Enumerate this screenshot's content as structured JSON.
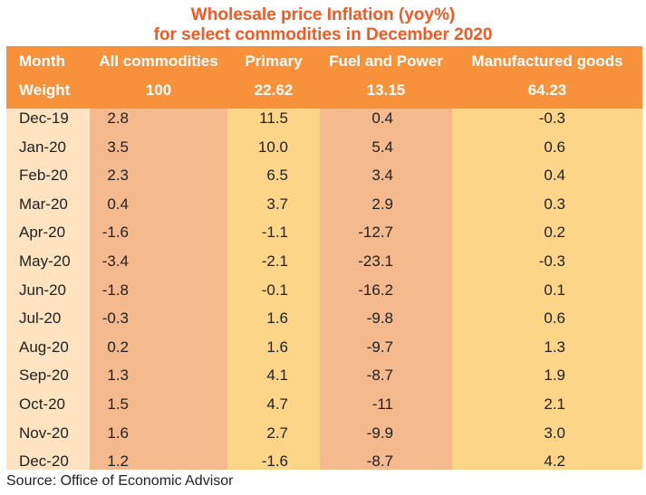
{
  "title_line1": "Wholesale price Inflation (yoy%)",
  "title_line2": "for select commodities in December 2020",
  "source": "Source: Office of Economic Advisor",
  "colors": {
    "title": "#f15a24",
    "header_bg": "#f7913a",
    "col_month": "#fde3c0",
    "col_all": "#f4b98d",
    "col_primary": "#fdd589",
    "col_fuel": "#f4b98d",
    "col_manufactured": "#fdd589",
    "header_text": "#ffffff"
  },
  "chart_data": {
    "type": "table",
    "title": "Wholesale price Inflation (yoy%) for select commodities in December 2020",
    "columns": [
      "Month",
      "All commodities",
      "Primary",
      "Fuel and Power",
      "Manufactured goods"
    ],
    "weights": [
      "Weight",
      "100",
      "22.62",
      "13.15",
      "64.23"
    ],
    "rows": [
      [
        "Dec-19",
        "2.8",
        "11.5",
        "0.4",
        "-0.3"
      ],
      [
        "Jan-20",
        "3.5",
        "10.0",
        "5.4",
        "0.6"
      ],
      [
        "Feb-20",
        "2.3",
        "6.5",
        "3.4",
        "0.4"
      ],
      [
        "Mar-20",
        "0.4",
        "3.7",
        "2.9",
        "0.3"
      ],
      [
        "Apr-20",
        "-1.6",
        "-1.1",
        "-12.7",
        "0.2"
      ],
      [
        "May-20",
        "-3.4",
        "-2.1",
        "-23.1",
        "-0.3"
      ],
      [
        "Jun-20",
        "-1.8",
        "-0.1",
        "-16.2",
        "0.1"
      ],
      [
        "Jul-20",
        "-0.3",
        "1.6",
        "-9.8",
        "0.6"
      ],
      [
        "Aug-20",
        "0.2",
        "1.6",
        "-9.7",
        "1.3"
      ],
      [
        "Sep-20",
        "1.3",
        "4.1",
        "-8.7",
        "1.9"
      ],
      [
        "Oct-20",
        "1.5",
        "4.7",
        "-11",
        "2.1"
      ],
      [
        "Nov-20",
        "1.6",
        "2.7",
        "-9.9",
        "3.0"
      ],
      [
        "Dec-20",
        "1.2",
        "-1.6",
        "-8.7",
        "4.2"
      ]
    ]
  }
}
